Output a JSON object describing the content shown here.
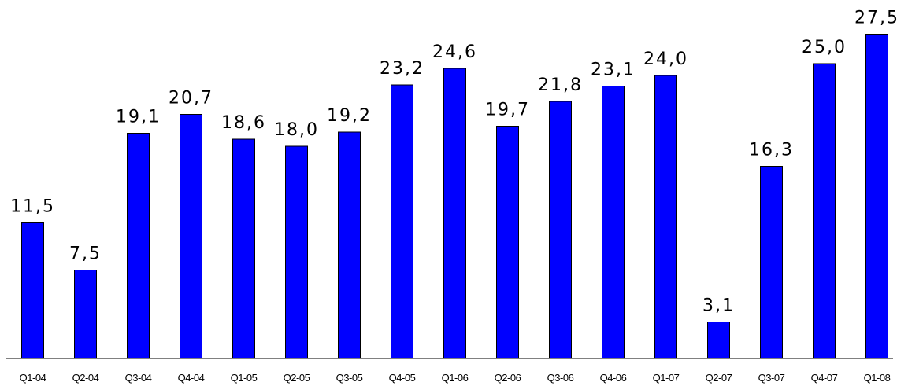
{
  "chart_data": {
    "type": "bar",
    "categories": [
      "Q1-04",
      "Q2-04",
      "Q3-04",
      "Q4-04",
      "Q1-05",
      "Q2-05",
      "Q3-05",
      "Q4-05",
      "Q1-06",
      "Q2-06",
      "Q3-06",
      "Q4-06",
      "Q1-07",
      "Q2-07",
      "Q3-07",
      "Q4-07",
      "Q1-08"
    ],
    "values": [
      11.5,
      7.5,
      19.1,
      20.7,
      18.6,
      18.0,
      19.2,
      23.2,
      24.6,
      19.7,
      21.8,
      23.1,
      24.0,
      3.1,
      16.3,
      25.0,
      27.5
    ],
    "value_labels": [
      "11,5",
      "7,5",
      "19,1",
      "20,7",
      "18,6",
      "18,0",
      "19,2",
      "23,2",
      "24,6",
      "19,7",
      "21,8",
      "23,1",
      "24,0",
      "3,1",
      "16,3",
      "25,0",
      "27,5"
    ],
    "title": "",
    "xlabel": "",
    "ylabel": "",
    "ylim": [
      0,
      28
    ],
    "grid": false,
    "legend": "none",
    "bar_color": "#0000ff"
  }
}
